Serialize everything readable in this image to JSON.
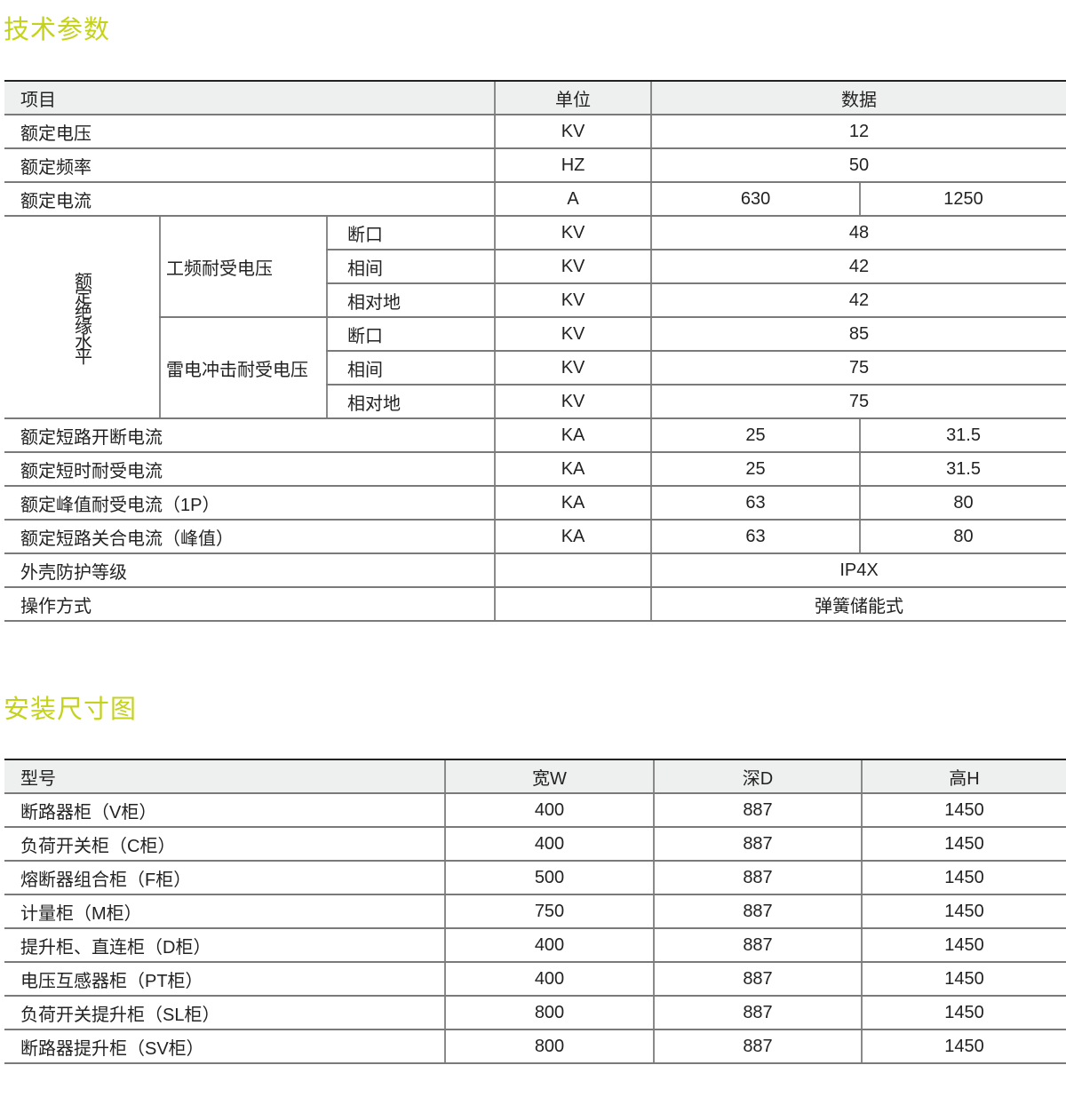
{
  "tech": {
    "title": "技术参数",
    "header": {
      "item": "项目",
      "unit": "单位",
      "data": "数据"
    },
    "rows_top": [
      {
        "label": "额定电压",
        "unit": "KV",
        "values": [
          "12"
        ]
      },
      {
        "label": "额定频率",
        "unit": "HZ",
        "values": [
          "50"
        ]
      },
      {
        "label": "额定电流",
        "unit": "A",
        "values": [
          "630",
          "1250"
        ]
      }
    ],
    "insulation": {
      "label": "额定绝缘水平",
      "groups": [
        {
          "label": "工频耐受电压",
          "items": [
            {
              "label": "断口",
              "unit": "KV",
              "value": "48"
            },
            {
              "label": "相间",
              "unit": "KV",
              "value": "42"
            },
            {
              "label": "相对地",
              "unit": "KV",
              "value": "42"
            }
          ]
        },
        {
          "label": "雷电冲击耐受电压",
          "items": [
            {
              "label": "断口",
              "unit": "KV",
              "value": "85"
            },
            {
              "label": "相间",
              "unit": "KV",
              "value": "75"
            },
            {
              "label": "相对地",
              "unit": "KV",
              "value": "75"
            }
          ]
        }
      ]
    },
    "rows_bottom": [
      {
        "label": "额定短路开断电流",
        "unit": "KA",
        "values": [
          "25",
          "31.5"
        ]
      },
      {
        "label": "额定短时耐受电流",
        "unit": "KA",
        "values": [
          "25",
          "31.5"
        ]
      },
      {
        "label": "额定峰值耐受电流（1P）",
        "unit": "KA",
        "values": [
          "63",
          "80"
        ]
      },
      {
        "label": "额定短路关合电流（峰值）",
        "unit": "KA",
        "values": [
          "63",
          "80"
        ]
      },
      {
        "label": "外壳防护等级",
        "unit": "",
        "values": [
          "IP4X"
        ]
      },
      {
        "label": "操作方式",
        "unit": "",
        "values": [
          "弹簧储能式"
        ]
      }
    ]
  },
  "dims": {
    "title": "安装尺寸图",
    "header": [
      "型号",
      "宽W",
      "深D",
      "高H"
    ],
    "rows": [
      [
        "断路器柜（V柜）",
        "400",
        "887",
        "1450"
      ],
      [
        "负荷开关柜（C柜）",
        "400",
        "887",
        "1450"
      ],
      [
        "熔断器组合柜（F柜）",
        "500",
        "887",
        "1450"
      ],
      [
        "计量柜（M柜）",
        "750",
        "887",
        "1450"
      ],
      [
        "提升柜、直连柜（D柜）",
        "400",
        "887",
        "1450"
      ],
      [
        "电压互感器柜（PT柜）",
        "400",
        "887",
        "1450"
      ],
      [
        "负荷开关提升柜（SL柜）",
        "800",
        "887",
        "1450"
      ],
      [
        "断路器提升柜（SV柜）",
        "800",
        "887",
        "1450"
      ]
    ]
  },
  "colors": {
    "title": "#c5d21c",
    "header_bg": "#eeefef"
  }
}
